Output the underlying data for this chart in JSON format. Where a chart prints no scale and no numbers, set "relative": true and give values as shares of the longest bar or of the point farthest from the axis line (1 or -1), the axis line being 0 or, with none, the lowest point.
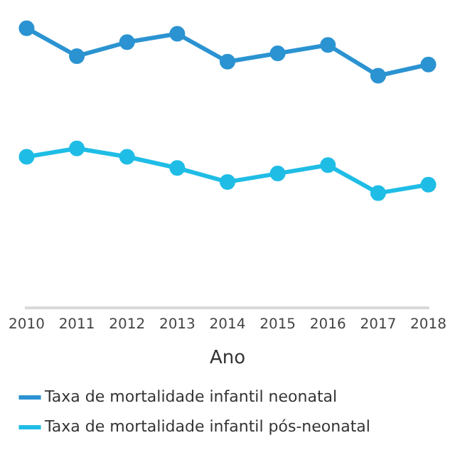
{
  "chart_data": {
    "type": "line",
    "relative": true,
    "xlabel": "Ano",
    "categories": [
      "2010",
      "2011",
      "2012",
      "2013",
      "2014",
      "2015",
      "2016",
      "2017",
      "2018"
    ],
    "series": [
      {
        "name": "Taxa de mortalidade infantil neonatal",
        "color": "#2b93d1",
        "values": [
          1,
          0.9,
          0.95,
          0.98,
          0.88,
          0.91,
          0.94,
          0.83,
          0.87
        ]
      },
      {
        "name": "Taxa de mortalidade infantil pós-neonatal",
        "color": "#1fbde6",
        "values": [
          0.54,
          0.57,
          0.54,
          0.5,
          0.45,
          0.48,
          0.51,
          0.41,
          0.44
        ]
      }
    ],
    "marker": "circle",
    "grid": false,
    "legend": "bottom"
  }
}
